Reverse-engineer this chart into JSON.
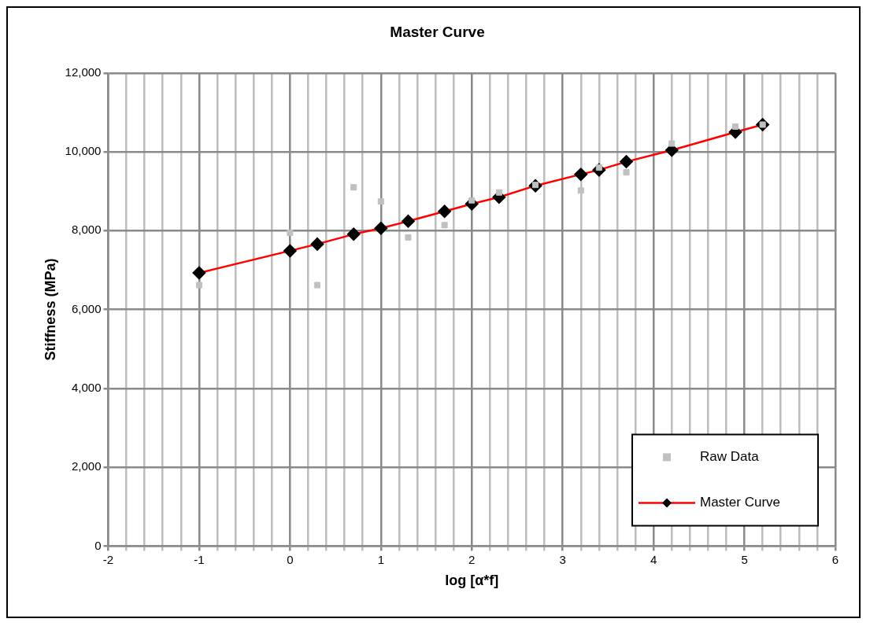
{
  "chart_data": {
    "type": "scatter",
    "title": "Master Curve",
    "xlabel": "log [α*f]",
    "ylabel": "Stiffness (MPa)",
    "xlim": [
      -2,
      6
    ],
    "ylim": [
      0,
      12000
    ],
    "xticks": [
      -2,
      {
        "value": -1.8,
        "label": null
      },
      {
        "value": -1.6,
        "label": null
      },
      {
        "value": -1.4,
        "label": null
      },
      {
        "value": -1.2,
        "label": null
      },
      -1,
      {
        "value": -0.8,
        "label": null
      },
      {
        "value": -0.6,
        "label": null
      },
      {
        "value": -0.4,
        "label": null
      },
      {
        "value": -0.2,
        "label": null
      },
      0,
      {
        "value": 0.2,
        "label": null
      },
      {
        "value": 0.4,
        "label": null
      },
      {
        "value": 0.6,
        "label": null
      },
      {
        "value": 0.8,
        "label": null
      },
      1,
      {
        "value": 1.2,
        "label": null
      },
      {
        "value": 1.4,
        "label": null
      },
      {
        "value": 1.6,
        "label": null
      },
      {
        "value": 1.8,
        "label": null
      },
      2,
      {
        "value": 2.2,
        "label": null
      },
      {
        "value": 2.4,
        "label": null
      },
      {
        "value": 2.6,
        "label": null
      },
      {
        "value": 2.8,
        "label": null
      },
      3,
      {
        "value": 3.2,
        "label": null
      },
      {
        "value": 3.4,
        "label": null
      },
      {
        "value": 3.6,
        "label": null
      },
      {
        "value": 3.8,
        "label": null
      },
      4,
      {
        "value": 4.2,
        "label": null
      },
      {
        "value": 4.4,
        "label": null
      },
      {
        "value": 4.6,
        "label": null
      },
      {
        "value": 4.8,
        "label": null
      },
      5,
      {
        "value": 5.2,
        "label": null
      },
      {
        "value": 5.4,
        "label": null
      },
      {
        "value": 5.6,
        "label": null
      },
      {
        "value": 5.8,
        "label": null
      },
      6
    ],
    "yticks": [
      0,
      {
        "value": 2000,
        "label": "2,000"
      },
      {
        "value": 4000,
        "label": "4,000"
      },
      {
        "value": 6000,
        "label": "6,000"
      },
      {
        "value": 8000,
        "label": "8,000"
      },
      {
        "value": 10000,
        "label": "10,000"
      },
      {
        "value": 12000,
        "label": "12,000"
      }
    ],
    "grid": true,
    "legend": "bottom right",
    "series": [
      {
        "name": "Raw Data",
        "marker": "square",
        "color": "#c0c0c0",
        "x": [
          -1,
          0,
          0.3,
          0.7,
          1,
          1.3,
          1.7,
          2,
          2.3,
          2.7,
          3.2,
          3.4,
          3.7,
          4.2,
          4.9,
          5.2
        ],
        "values": [
          6620,
          7950,
          6620,
          9100,
          8740,
          7830,
          8140,
          8770,
          8970,
          9160,
          9020,
          9600,
          9480,
          10210,
          10640,
          10690
        ]
      },
      {
        "name": "Master Curve",
        "type": "line",
        "marker": "diamond",
        "color": "#ff0000",
        "x": [
          -1,
          0,
          0.3,
          0.7,
          1,
          1.3,
          1.7,
          2,
          2.3,
          2.7,
          3.2,
          3.4,
          3.7,
          4.2,
          4.9,
          5.2
        ],
        "values": [
          6930,
          7490,
          7660,
          7910,
          8060,
          8240,
          8490,
          8680,
          8850,
          9140,
          9430,
          9540,
          9750,
          10040,
          10500,
          10690
        ]
      }
    ]
  }
}
